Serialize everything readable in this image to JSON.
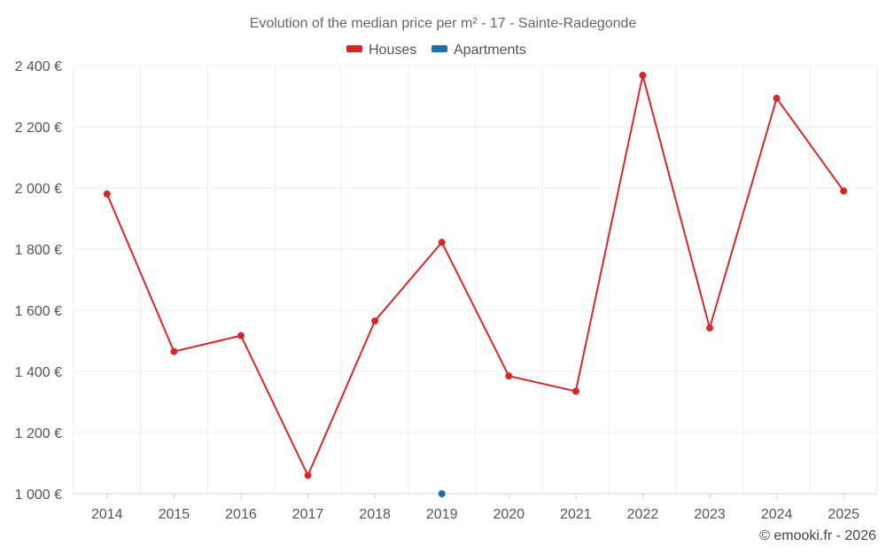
{
  "chart_data": {
    "type": "line",
    "title": "Evolution of the median price per m² - 17 - Sainte-Radegonde",
    "categories": [
      "2014",
      "2015",
      "2016",
      "2017",
      "2018",
      "2019",
      "2020",
      "2021",
      "2022",
      "2023",
      "2024",
      "2025"
    ],
    "ylim": [
      1000,
      2400
    ],
    "yticks": [
      1000,
      1200,
      1400,
      1600,
      1800,
      2000,
      2200,
      2400
    ],
    "ytick_labels": [
      "1 000 €",
      "1 200 €",
      "1 400 €",
      "1 600 €",
      "1 800 €",
      "2 000 €",
      "2 200 €",
      "2 400 €"
    ],
    "grid": true,
    "legend_position": "top-center",
    "series": [
      {
        "name": "Houses",
        "color": "#d62728",
        "values": [
          1980,
          1465,
          1517,
          1060,
          1565,
          1822,
          1385,
          1335,
          2368,
          1542,
          2293,
          1990
        ]
      },
      {
        "name": "Apartments",
        "color": "#1f6ea8",
        "values": [
          null,
          null,
          null,
          null,
          null,
          1000,
          null,
          null,
          null,
          null,
          null,
          null
        ]
      }
    ]
  },
  "credit": "© emooki.fr - 2026"
}
